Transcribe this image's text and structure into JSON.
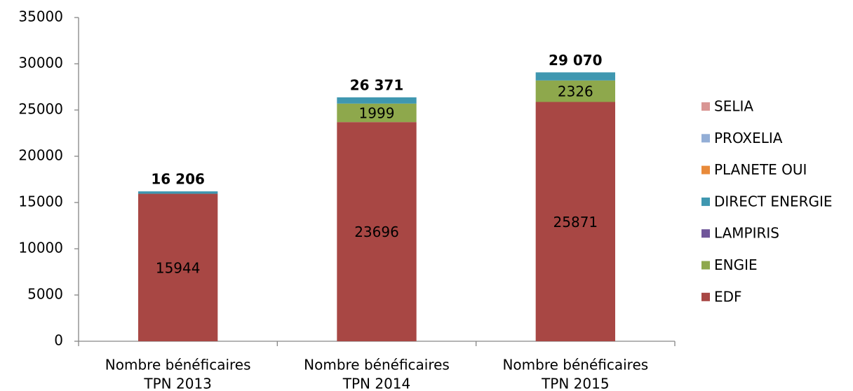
{
  "chart_data": {
    "type": "stacked_bar",
    "categories": [
      [
        "Nombre bénéficaires",
        "TPN 2013"
      ],
      [
        "Nombre bénéficaires",
        "TPN 2014"
      ],
      [
        "Nombre bénéficaires",
        "TPN 2015"
      ]
    ],
    "series": [
      {
        "name": "EDF",
        "color": "#a84744",
        "values": [
          15944,
          23696,
          25871
        ],
        "show_labels": true
      },
      {
        "name": "ENGIE",
        "color": "#8ea84c",
        "values": [
          0,
          1999,
          2326
        ],
        "show_labels": true
      },
      {
        "name": "LAMPIRIS",
        "color": "#70569a",
        "values": [
          0,
          0,
          0
        ],
        "show_labels": false
      },
      {
        "name": "DIRECT ENERGIE",
        "color": "#3f97b0",
        "values": [
          262,
          676,
          873
        ],
        "show_labels": false
      },
      {
        "name": "PLANETE OUI",
        "color": "#e88a3a",
        "values": [
          0,
          0,
          0
        ],
        "show_labels": false
      },
      {
        "name": "PROXELIA",
        "color": "#93aed6",
        "values": [
          0,
          0,
          0
        ],
        "show_labels": false
      },
      {
        "name": "SELIA",
        "color": "#d99694",
        "values": [
          0,
          0,
          0
        ],
        "show_labels": false
      }
    ],
    "totals": [
      16206,
      26371,
      29070
    ],
    "total_labels": [
      "16 206",
      "26 371",
      "29 070"
    ],
    "ylim": [
      0,
      35000
    ],
    "yticks": [
      0,
      5000,
      10000,
      15000,
      20000,
      25000,
      30000,
      35000
    ],
    "legend": "right"
  }
}
